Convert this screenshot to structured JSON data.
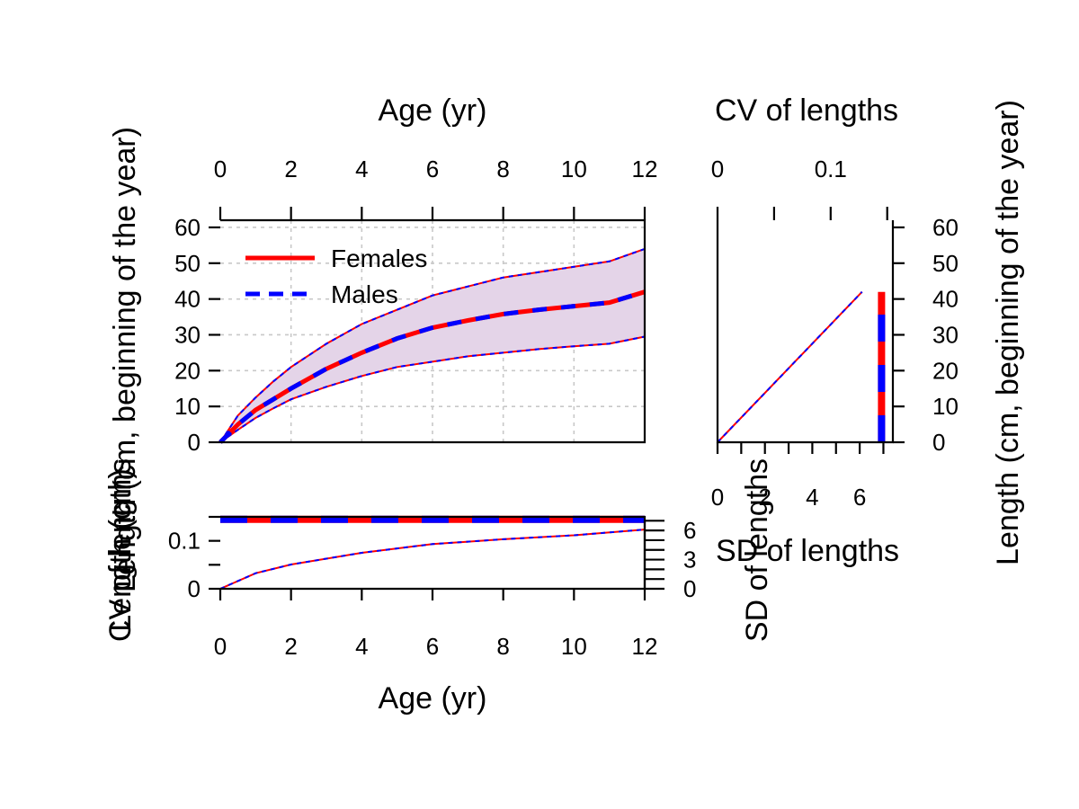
{
  "colors": {
    "female": "#ff0000",
    "male": "#0000ff",
    "band": "#e4d4e8",
    "grid": "#c8c8c8"
  },
  "chart_data": [
    {
      "type": "line",
      "panel": "length-at-age",
      "xlabel": "Age (yr)",
      "ylabel": "Length (cm, beginning of the year)",
      "ylabel_right": "Length (cm, beginning of the year)",
      "xlim": [
        0,
        12
      ],
      "ylim": [
        0,
        62
      ],
      "x_ticks": [
        "0",
        "2",
        "4",
        "6",
        "8",
        "10",
        "12"
      ],
      "y_ticks": [
        "0",
        "10",
        "20",
        "30",
        "40",
        "50",
        "60"
      ],
      "grid": true,
      "legend": {
        "position": "top-left",
        "entries": [
          "Females",
          "Males"
        ]
      },
      "x": [
        0,
        0.5,
        1,
        1.5,
        2,
        3,
        4,
        5,
        6,
        7,
        8,
        9,
        10,
        11,
        12
      ],
      "series": [
        {
          "name": "Females",
          "values": [
            0,
            5,
            9,
            12,
            15,
            20.5,
            25,
            29,
            32,
            34,
            35.8,
            37,
            38,
            39,
            42
          ]
        },
        {
          "name": "Males",
          "values": [
            0,
            5,
            9,
            12,
            15,
            20.5,
            25,
            29,
            32,
            34,
            35.8,
            37,
            38,
            39,
            42
          ]
        }
      ],
      "band_upper": [
        0,
        7.5,
        12.5,
        17,
        21,
        27.5,
        33,
        37,
        41,
        43.5,
        46,
        47.5,
        49,
        50.5,
        54
      ],
      "band_lower": [
        0,
        3.5,
        6.8,
        9.5,
        12,
        15.5,
        18.5,
        21,
        22.5,
        24,
        25,
        26,
        26.8,
        27.5,
        29.5
      ]
    },
    {
      "type": "line",
      "panel": "cv-at-age",
      "xlabel": "Age (yr)",
      "ylabel": "CV of lengths",
      "ylabel_right": "Length (cm)",
      "xlim": [
        0,
        12
      ],
      "ylim": [
        0,
        0.15
      ],
      "x_ticks": [
        "0",
        "2",
        "4",
        "6",
        "8",
        "10",
        "12"
      ],
      "y_ticks": [
        "0",
        "0.1"
      ],
      "y_right_ticks": [
        "0",
        "3",
        "6"
      ],
      "right_axis_label": "SD of lengths",
      "x": [
        0,
        1,
        2,
        4,
        6,
        8,
        10,
        12
      ],
      "series": [
        {
          "name": "Females",
          "values": [
            0.145,
            0.145,
            0.145,
            0.145,
            0.145,
            0.145,
            0.145,
            0.145
          ]
        },
        {
          "name": "Males",
          "values": [
            0.145,
            0.145,
            0.145,
            0.145,
            0.145,
            0.145,
            0.145,
            0.145
          ]
        }
      ],
      "sd_values": [
        0,
        1.6,
        2.5,
        3.7,
        4.6,
        5.1,
        5.5,
        6.1
      ]
    },
    {
      "type": "line",
      "panel": "cv-sd-vs-length",
      "xlabel": "CV of lengths",
      "xlabel_bottom": "SD of lengths",
      "ylabel": "Length (cm, beginning of the year)",
      "ylabel_inner": "SD of lengths",
      "xlim": [
        0,
        0.155
      ],
      "x_ticks": [
        "0",
        "0.1"
      ],
      "sd_lim": [
        0,
        7.4
      ],
      "sd_ticks": [
        "0",
        "2",
        "4",
        "6"
      ],
      "ylim": [
        0,
        62
      ],
      "y_ticks": [
        "0",
        "10",
        "20",
        "30",
        "40",
        "50",
        "60"
      ],
      "cv": 0.145,
      "cv_length_range": [
        0,
        42
      ],
      "sd_vs_length": [
        [
          0,
          0
        ],
        [
          6.1,
          42
        ]
      ]
    }
  ]
}
